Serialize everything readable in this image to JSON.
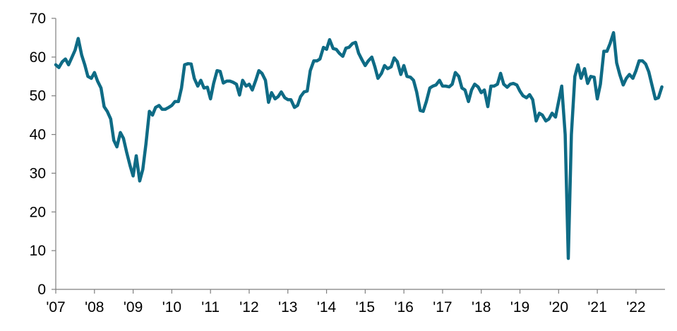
{
  "chart_data": {
    "type": "line",
    "title": "",
    "xlabel": "",
    "ylabel": "",
    "ylim": [
      0,
      70
    ],
    "yticks": [
      0,
      10,
      20,
      30,
      40,
      50,
      60,
      70
    ],
    "xlim": [
      2007,
      2022.75
    ],
    "xticks": [
      {
        "value": 2007,
        "label": "'07"
      },
      {
        "value": 2008,
        "label": "'08"
      },
      {
        "value": 2009,
        "label": "'09"
      },
      {
        "value": 2010,
        "label": "'10"
      },
      {
        "value": 2011,
        "label": "'11"
      },
      {
        "value": 2012,
        "label": "'12"
      },
      {
        "value": 2013,
        "label": "'13"
      },
      {
        "value": 2014,
        "label": "'14"
      },
      {
        "value": 2015,
        "label": "'15"
      },
      {
        "value": 2016,
        "label": "'16"
      },
      {
        "value": 2017,
        "label": "'17"
      },
      {
        "value": 2018,
        "label": "'18"
      },
      {
        "value": 2019,
        "label": "'19"
      },
      {
        "value": 2020,
        "label": "'20"
      },
      {
        "value": 2021,
        "label": "'21"
      },
      {
        "value": 2022,
        "label": "'22"
      }
    ],
    "grid": false,
    "series": [
      {
        "color": "#0e6b85",
        "points": [
          [
            2007.0,
            58
          ],
          [
            2007.08,
            57.3
          ],
          [
            2007.17,
            58.8
          ],
          [
            2007.25,
            59.5
          ],
          [
            2007.33,
            58
          ],
          [
            2007.42,
            60
          ],
          [
            2007.5,
            61.8
          ],
          [
            2007.58,
            64.8
          ],
          [
            2007.67,
            60.5
          ],
          [
            2007.75,
            58
          ],
          [
            2007.83,
            55
          ],
          [
            2007.92,
            54.5
          ],
          [
            2008.0,
            56
          ],
          [
            2008.08,
            53.8
          ],
          [
            2008.17,
            52
          ],
          [
            2008.25,
            47.2
          ],
          [
            2008.33,
            46
          ],
          [
            2008.42,
            44
          ],
          [
            2008.5,
            38.5
          ],
          [
            2008.58,
            36.8
          ],
          [
            2008.67,
            40.5
          ],
          [
            2008.75,
            39
          ],
          [
            2008.83,
            35.5
          ],
          [
            2008.92,
            32
          ],
          [
            2009.0,
            29.3
          ],
          [
            2009.08,
            34.5
          ],
          [
            2009.17,
            28
          ],
          [
            2009.25,
            31
          ],
          [
            2009.33,
            37.5
          ],
          [
            2009.42,
            46
          ],
          [
            2009.5,
            45
          ],
          [
            2009.58,
            47
          ],
          [
            2009.67,
            47.5
          ],
          [
            2009.75,
            46.5
          ],
          [
            2009.83,
            46.5
          ],
          [
            2009.92,
            47
          ],
          [
            2010.0,
            47.5
          ],
          [
            2010.08,
            48.5
          ],
          [
            2010.17,
            48.5
          ],
          [
            2010.25,
            52
          ],
          [
            2010.33,
            58
          ],
          [
            2010.42,
            58.3
          ],
          [
            2010.5,
            58.2
          ],
          [
            2010.58,
            54.5
          ],
          [
            2010.67,
            52.5
          ],
          [
            2010.75,
            54
          ],
          [
            2010.83,
            52
          ],
          [
            2010.92,
            52.2
          ],
          [
            2011.0,
            49.2
          ],
          [
            2011.08,
            53.2
          ],
          [
            2011.17,
            56.5
          ],
          [
            2011.25,
            56.3
          ],
          [
            2011.33,
            53.3
          ],
          [
            2011.42,
            53.8
          ],
          [
            2011.5,
            53.8
          ],
          [
            2011.58,
            53.5
          ],
          [
            2011.67,
            53
          ],
          [
            2011.75,
            50.2
          ],
          [
            2011.83,
            54
          ],
          [
            2011.92,
            52.5
          ],
          [
            2012.0,
            53
          ],
          [
            2012.08,
            51.5
          ],
          [
            2012.17,
            54
          ],
          [
            2012.25,
            56.5
          ],
          [
            2012.33,
            55.8
          ],
          [
            2012.42,
            54
          ],
          [
            2012.5,
            48.3
          ],
          [
            2012.58,
            50.8
          ],
          [
            2012.67,
            49.2
          ],
          [
            2012.75,
            49.8
          ],
          [
            2012.83,
            51
          ],
          [
            2012.92,
            49.5
          ],
          [
            2013.0,
            49
          ],
          [
            2013.08,
            49
          ],
          [
            2013.17,
            47
          ],
          [
            2013.25,
            47.5
          ],
          [
            2013.33,
            49.8
          ],
          [
            2013.42,
            51
          ],
          [
            2013.5,
            51.2
          ],
          [
            2013.58,
            56.5
          ],
          [
            2013.67,
            59
          ],
          [
            2013.75,
            59
          ],
          [
            2013.83,
            59.5
          ],
          [
            2013.92,
            62.5
          ],
          [
            2014.0,
            62
          ],
          [
            2014.08,
            64.5
          ],
          [
            2014.17,
            62.2
          ],
          [
            2014.25,
            62
          ],
          [
            2014.33,
            61
          ],
          [
            2014.42,
            60.2
          ],
          [
            2014.5,
            62.3
          ],
          [
            2014.58,
            62.5
          ],
          [
            2014.67,
            63.5
          ],
          [
            2014.75,
            63.8
          ],
          [
            2014.83,
            61
          ],
          [
            2014.92,
            59.2
          ],
          [
            2015.0,
            57.8
          ],
          [
            2015.08,
            59
          ],
          [
            2015.17,
            60
          ],
          [
            2015.25,
            57.5
          ],
          [
            2015.33,
            54.5
          ],
          [
            2015.42,
            55.8
          ],
          [
            2015.5,
            57.8
          ],
          [
            2015.58,
            57
          ],
          [
            2015.67,
            57.5
          ],
          [
            2015.75,
            59.8
          ],
          [
            2015.83,
            58.8
          ],
          [
            2015.92,
            55.5
          ],
          [
            2016.0,
            57.8
          ],
          [
            2016.08,
            55
          ],
          [
            2016.17,
            54.8
          ],
          [
            2016.25,
            54
          ],
          [
            2016.33,
            51
          ],
          [
            2016.42,
            46.2
          ],
          [
            2016.5,
            46
          ],
          [
            2016.58,
            48.5
          ],
          [
            2016.67,
            52
          ],
          [
            2016.75,
            52.5
          ],
          [
            2016.83,
            52.8
          ],
          [
            2016.92,
            54
          ],
          [
            2017.0,
            52.5
          ],
          [
            2017.08,
            52.5
          ],
          [
            2017.17,
            52.3
          ],
          [
            2017.25,
            53
          ],
          [
            2017.33,
            56
          ],
          [
            2017.42,
            55
          ],
          [
            2017.5,
            52
          ],
          [
            2017.58,
            51.5
          ],
          [
            2017.67,
            48.5
          ],
          [
            2017.75,
            51.5
          ],
          [
            2017.83,
            53
          ],
          [
            2017.92,
            52.3
          ],
          [
            2018.0,
            50.8
          ],
          [
            2018.08,
            51.5
          ],
          [
            2018.17,
            47.2
          ],
          [
            2018.25,
            52.5
          ],
          [
            2018.33,
            52.5
          ],
          [
            2018.42,
            53
          ],
          [
            2018.5,
            55.8
          ],
          [
            2018.58,
            53
          ],
          [
            2018.67,
            52.2
          ],
          [
            2018.75,
            53
          ],
          [
            2018.83,
            53.2
          ],
          [
            2018.92,
            52.8
          ],
          [
            2019.0,
            51.2
          ],
          [
            2019.08,
            50
          ],
          [
            2019.17,
            49.5
          ],
          [
            2019.25,
            50.3
          ],
          [
            2019.33,
            49
          ],
          [
            2019.42,
            43.5
          ],
          [
            2019.5,
            45.5
          ],
          [
            2019.58,
            45
          ],
          [
            2019.67,
            43.5
          ],
          [
            2019.75,
            44
          ],
          [
            2019.83,
            45.5
          ],
          [
            2019.92,
            44.5
          ],
          [
            2020.0,
            48.5
          ],
          [
            2020.08,
            52.5
          ],
          [
            2020.17,
            40
          ],
          [
            2020.25,
            8
          ],
          [
            2020.33,
            40
          ],
          [
            2020.42,
            55
          ],
          [
            2020.5,
            58
          ],
          [
            2020.58,
            54.5
          ],
          [
            2020.67,
            57
          ],
          [
            2020.75,
            53.2
          ],
          [
            2020.83,
            55
          ],
          [
            2020.92,
            54.8
          ],
          [
            2021.0,
            49.2
          ],
          [
            2021.08,
            53
          ],
          [
            2021.17,
            61.5
          ],
          [
            2021.25,
            61.5
          ],
          [
            2021.33,
            63.5
          ],
          [
            2021.42,
            66.3
          ],
          [
            2021.5,
            58.5
          ],
          [
            2021.58,
            55.5
          ],
          [
            2021.67,
            52.8
          ],
          [
            2021.75,
            54.5
          ],
          [
            2021.83,
            55.5
          ],
          [
            2021.92,
            54.5
          ],
          [
            2022.0,
            56.5
          ],
          [
            2022.08,
            59
          ],
          [
            2022.17,
            59
          ],
          [
            2022.25,
            58.2
          ],
          [
            2022.33,
            56.2
          ],
          [
            2022.42,
            52.5
          ],
          [
            2022.5,
            49.2
          ],
          [
            2022.58,
            49.5
          ],
          [
            2022.67,
            52.3
          ]
        ]
      }
    ]
  }
}
